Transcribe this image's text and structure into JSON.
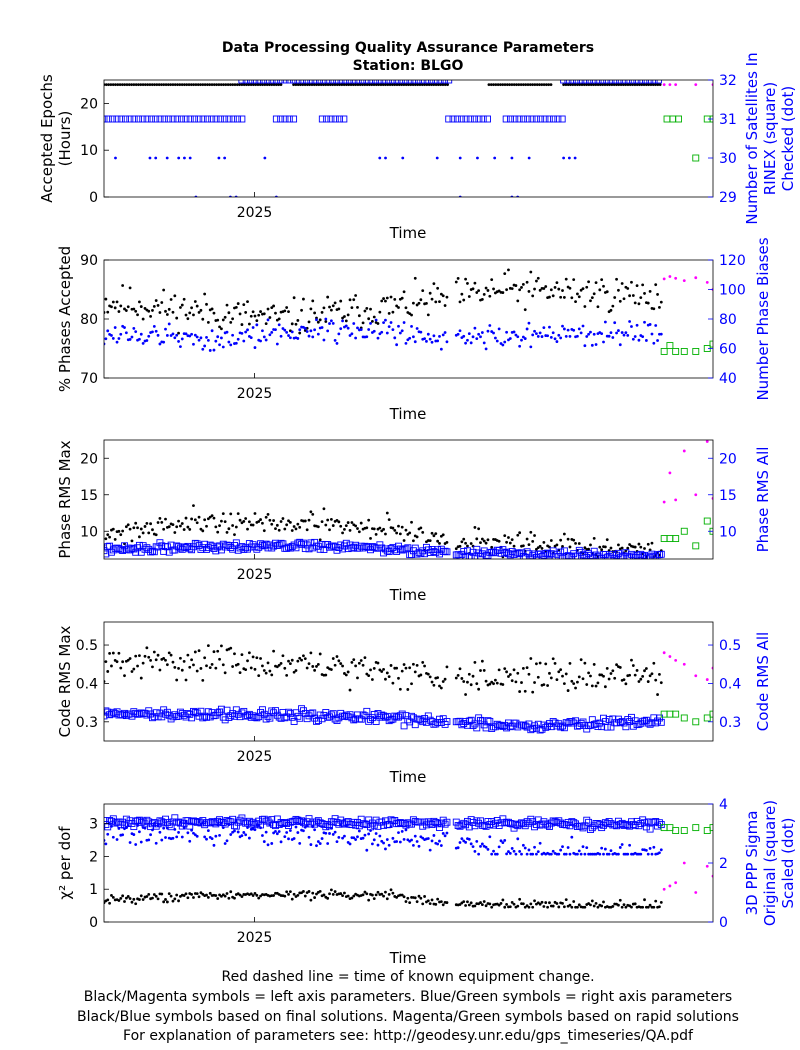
{
  "chart_data": [
    {
      "type": "scatter",
      "title": "Data Processing Quality Assurance Parameters",
      "subtitle": "Station: BLGO",
      "xlabel": "Time",
      "x_ticks": [
        "2025"
      ],
      "ylabel_left": "Accepted Epochs (Hours)",
      "ylabel_right": "Number of Satellites In RINEX (square) Checked (dot)",
      "ylim_left": [
        0,
        25
      ],
      "yticks_left": [
        0,
        10,
        20
      ],
      "ylim_right": [
        29,
        32
      ],
      "yticks_right": [
        29,
        30,
        31,
        32
      ],
      "grid": false,
      "series": [
        {
          "color": "#000000",
          "axis": "left",
          "marker": "dot",
          "source": "final",
          "mode": "line-segments",
          "segments": [
            [
              0.0,
              0.31,
              24
            ],
            [
              0.33,
              0.6,
              24
            ],
            [
              0.67,
              0.78,
              24
            ],
            [
              0.8,
              0.97,
              24
            ]
          ]
        },
        {
          "color": "#0000ff",
          "axis": "right",
          "marker": "square",
          "source": "final",
          "mode": "line-segments",
          "segments": [
            [
              0.0,
              0.24,
              31
            ],
            [
              0.3,
              0.33,
              31
            ],
            [
              0.38,
              0.42,
              31
            ],
            [
              0.6,
              0.67,
              31
            ],
            [
              0.7,
              0.8,
              31
            ]
          ]
        },
        {
          "color": "#0000ff",
          "axis": "right",
          "marker": "square",
          "source": "final",
          "mode": "line-segments",
          "segments": [
            [
              0.24,
              0.6,
              32
            ],
            [
              0.8,
              0.97,
              32
            ]
          ]
        },
        {
          "color": "#0000ff",
          "axis": "right",
          "marker": "dot",
          "source": "final",
          "mode": "points",
          "t": [
            0.02,
            0.08,
            0.09,
            0.11,
            0.13,
            0.14,
            0.15,
            0.2,
            0.21,
            0.28,
            0.48,
            0.49,
            0.52,
            0.58,
            0.62,
            0.65,
            0.68,
            0.71,
            0.74,
            0.8,
            0.81,
            0.82
          ],
          "values": [
            30,
            30,
            30,
            30,
            30,
            30,
            30,
            30,
            30,
            30,
            30,
            30,
            30,
            30,
            30,
            30,
            30,
            30,
            30,
            30,
            30,
            30
          ]
        },
        {
          "color": "#0000ff",
          "axis": "right",
          "marker": "dot",
          "source": "final",
          "mode": "points",
          "t": [
            0.16,
            0.22,
            0.23,
            0.3,
            0.62,
            0.71,
            0.72
          ],
          "values": [
            29,
            29,
            29,
            29,
            29,
            29,
            29
          ]
        },
        {
          "color": "#ff00ff",
          "axis": "left",
          "marker": "dot",
          "source": "rapid",
          "mode": "points",
          "t": [
            0.975,
            0.985,
            0.995,
            1.03,
            1.06
          ],
          "values": [
            24,
            24,
            24,
            24,
            24
          ]
        },
        {
          "color": "#00b000",
          "axis": "right",
          "marker": "square",
          "source": "rapid",
          "mode": "points",
          "t": [
            0.98,
            0.99,
            1.0,
            1.05,
            1.06
          ],
          "values": [
            31,
            31,
            31,
            31,
            31
          ]
        },
        {
          "color": "#00b000",
          "axis": "right",
          "marker": "square",
          "source": "rapid",
          "mode": "points",
          "t": [
            1.03
          ],
          "values": [
            30
          ]
        }
      ]
    },
    {
      "type": "scatter",
      "xlabel": "Time",
      "x_ticks": [
        "2025"
      ],
      "ylabel_left": "% Phases Accepted",
      "ylabel_right": "Number Phase Biases",
      "ylim_left": [
        70,
        90
      ],
      "yticks_left": [
        70,
        80,
        90
      ],
      "ylim_right": [
        40,
        120
      ],
      "yticks_right": [
        40,
        60,
        80,
        100,
        120
      ],
      "grid": false,
      "series": [
        {
          "color": "#000000",
          "axis": "left",
          "marker": "dot",
          "source": "final",
          "mode": "generated",
          "t_range": [
            0.0,
            0.97
          ],
          "n": 300,
          "base": [
            [
              0,
              83
            ],
            [
              0.3,
              80
            ],
            [
              0.5,
              82
            ],
            [
              0.7,
              85
            ],
            [
              0.97,
              84
            ]
          ],
          "noise": 2.6,
          "seed": 11,
          "gaps": [
            [
              0.6,
              0.61
            ]
          ],
          "clip": [
            70.5,
            89.5
          ]
        },
        {
          "color": "#0000ff",
          "axis": "right",
          "marker": "dot",
          "source": "final",
          "mode": "generated",
          "t_range": [
            0.0,
            0.97
          ],
          "n": 300,
          "base": [
            [
              0,
              70
            ],
            [
              0.2,
              66
            ],
            [
              0.4,
              74
            ],
            [
              0.6,
              68
            ],
            [
              0.97,
              70
            ]
          ],
          "noise": 7,
          "seed": 12,
          "gaps": [
            [
              0.6,
              0.61
            ]
          ],
          "clip": [
            41,
            118
          ]
        },
        {
          "color": "#ff00ff",
          "axis": "left",
          "marker": "dot",
          "source": "rapid",
          "mode": "points",
          "t": [
            0.975,
            0.985,
            0.995,
            1.01,
            1.03,
            1.05,
            1.06
          ],
          "values": [
            86.8,
            87.2,
            86.9,
            86.5,
            87.0,
            86.2,
            85.0
          ]
        },
        {
          "color": "#00b000",
          "axis": "right",
          "marker": "square",
          "source": "rapid",
          "mode": "points",
          "t": [
            0.975,
            0.985,
            0.995,
            1.01,
            1.03,
            1.05,
            1.06
          ],
          "values": [
            58,
            62,
            58,
            58,
            58,
            60,
            63
          ]
        }
      ]
    },
    {
      "type": "scatter",
      "xlabel": "Time",
      "x_ticks": [
        "2025"
      ],
      "ylabel_left": "Phase RMS Max",
      "ylabel_right": "Phase RMS All",
      "ylim_left": [
        6.2,
        22.5
      ],
      "yticks_left": [
        10,
        15,
        20
      ],
      "ylim_right": [
        6.2,
        22.5
      ],
      "yticks_right": [
        10,
        15,
        20
      ],
      "grid": false,
      "series": [
        {
          "color": "#000000",
          "axis": "left",
          "marker": "dot",
          "source": "final",
          "mode": "generated",
          "t_range": [
            0.0,
            0.97
          ],
          "n": 300,
          "base": [
            [
              0,
              9.5
            ],
            [
              0.15,
              11.5
            ],
            [
              0.3,
              11
            ],
            [
              0.5,
              10.5
            ],
            [
              0.6,
              8.7
            ],
            [
              0.97,
              7.2
            ]
          ],
          "noise": 1.4,
          "seed": 21,
          "gaps": [
            [
              0.6,
              0.61
            ]
          ],
          "clip": [
            6.5,
            15
          ]
        },
        {
          "color": "#0000ff",
          "axis": "right",
          "marker": "square",
          "source": "final",
          "mode": "generated",
          "t_range": [
            0.0,
            0.97
          ],
          "n": 300,
          "base": [
            [
              0,
              7.4
            ],
            [
              0.2,
              8.0
            ],
            [
              0.4,
              8.0
            ],
            [
              0.6,
              7.0
            ],
            [
              0.97,
              6.6
            ]
          ],
          "noise": 0.5,
          "seed": 22,
          "gaps": [
            [
              0.6,
              0.61
            ]
          ],
          "clip": [
            6.3,
            9.5
          ]
        },
        {
          "color": "#ff00ff",
          "axis": "left",
          "marker": "dot",
          "source": "rapid",
          "mode": "points",
          "t": [
            0.975,
            0.985,
            0.995,
            1.01,
            1.03,
            1.05,
            1.06
          ],
          "values": [
            14.0,
            18.0,
            14.3,
            21.0,
            15.0,
            22.3,
            14.5
          ]
        },
        {
          "color": "#00b000",
          "axis": "right",
          "marker": "square",
          "source": "rapid",
          "mode": "points",
          "t": [
            0.975,
            0.985,
            0.995,
            1.01,
            1.03,
            1.05,
            1.06
          ],
          "values": [
            9.0,
            9.0,
            9.0,
            10.0,
            8.0,
            11.4,
            10.0
          ]
        }
      ]
    },
    {
      "type": "scatter",
      "xlabel": "Time",
      "x_ticks": [
        "2025"
      ],
      "ylabel_left": "Code RMS Max",
      "ylabel_right": "Code RMS All",
      "ylim_left": [
        0.25,
        0.56
      ],
      "yticks_left": [
        0.3,
        0.4,
        0.5
      ],
      "ylim_right": [
        0.25,
        0.56
      ],
      "yticks_right": [
        0.3,
        0.4,
        0.5
      ],
      "grid": false,
      "series": [
        {
          "color": "#000000",
          "axis": "left",
          "marker": "dot",
          "source": "final",
          "mode": "generated",
          "t_range": [
            0.0,
            0.97
          ],
          "n": 300,
          "base": [
            [
              0,
              0.45
            ],
            [
              0.2,
              0.46
            ],
            [
              0.4,
              0.44
            ],
            [
              0.6,
              0.42
            ],
            [
              0.97,
              0.42
            ]
          ],
          "noise": 0.035,
          "seed": 31,
          "gaps": [
            [
              0.6,
              0.61
            ]
          ],
          "clip": [
            0.36,
            0.56
          ]
        },
        {
          "color": "#0000ff",
          "axis": "right",
          "marker": "square",
          "source": "final",
          "mode": "generated",
          "t_range": [
            0.0,
            0.97
          ],
          "n": 300,
          "base": [
            [
              0,
              0.32
            ],
            [
              0.2,
              0.32
            ],
            [
              0.5,
              0.31
            ],
            [
              0.7,
              0.29
            ],
            [
              0.97,
              0.3
            ]
          ],
          "noise": 0.012,
          "seed": 32,
          "gaps": [
            [
              0.6,
              0.61
            ]
          ],
          "clip": [
            0.26,
            0.35
          ]
        },
        {
          "color": "#ff00ff",
          "axis": "left",
          "marker": "dot",
          "source": "rapid",
          "mode": "points",
          "t": [
            0.975,
            0.985,
            0.995,
            1.01,
            1.03,
            1.05,
            1.06
          ],
          "values": [
            0.48,
            0.47,
            0.46,
            0.45,
            0.42,
            0.41,
            0.44
          ]
        },
        {
          "color": "#00b000",
          "axis": "right",
          "marker": "square",
          "source": "rapid",
          "mode": "points",
          "t": [
            0.975,
            0.985,
            0.995,
            1.01,
            1.03,
            1.05,
            1.06
          ],
          "values": [
            0.32,
            0.32,
            0.32,
            0.31,
            0.3,
            0.31,
            0.32
          ]
        }
      ]
    },
    {
      "type": "scatter",
      "xlabel": "Time",
      "x_ticks": [
        "2025"
      ],
      "ylabel_left": "χ² per dof",
      "ylabel_right": "3D PPP Sigma Original (square) Scaled (dot)",
      "ylim_left": [
        0,
        3.6
      ],
      "yticks_left": [
        0,
        1,
        2,
        3
      ],
      "ylim_right": [
        0,
        4
      ],
      "yticks_right": [
        0,
        2,
        4
      ],
      "grid": false,
      "series": [
        {
          "color": "#0000ff",
          "axis": "right",
          "marker": "square",
          "source": "final",
          "mode": "generated",
          "t_range": [
            0.0,
            0.97
          ],
          "n": 300,
          "base": [
            [
              0,
              3.35
            ],
            [
              0.2,
              3.4
            ],
            [
              0.5,
              3.35
            ],
            [
              0.97,
              3.3
            ]
          ],
          "noise": 0.12,
          "seed": 41,
          "gaps": [
            [
              0.6,
              0.61
            ]
          ],
          "clip": [
            3.0,
            3.95
          ]
        },
        {
          "color": "#0000ff",
          "axis": "right",
          "marker": "dot",
          "source": "final",
          "mode": "generated",
          "t_range": [
            0.0,
            0.97
          ],
          "n": 300,
          "base": [
            [
              0,
              3.0
            ],
            [
              0.3,
              3.0
            ],
            [
              0.6,
              2.7
            ],
            [
              0.75,
              2.3
            ],
            [
              0.97,
              2.3
            ]
          ],
          "noise": 0.35,
          "seed": 42,
          "gaps": [
            [
              0.6,
              0.61
            ]
          ],
          "clip": [
            2.3,
            4.0
          ]
        },
        {
          "color": "#000000",
          "axis": "left",
          "marker": "dot",
          "source": "final",
          "mode": "generated",
          "t_range": [
            0.0,
            0.97
          ],
          "n": 300,
          "base": [
            [
              0,
              0.7
            ],
            [
              0.3,
              0.85
            ],
            [
              0.5,
              0.8
            ],
            [
              0.6,
              0.55
            ],
            [
              0.97,
              0.5
            ]
          ],
          "noise": 0.12,
          "seed": 43,
          "gaps": [
            [
              0.6,
              0.61
            ]
          ],
          "clip": [
            0.45,
            1.4
          ]
        },
        {
          "color": "#ff00ff",
          "axis": "left",
          "marker": "dot",
          "source": "rapid",
          "mode": "points",
          "t": [
            0.975,
            0.985,
            0.995,
            1.01,
            1.03,
            1.05,
            1.06
          ],
          "values": [
            1.0,
            1.1,
            1.2,
            1.8,
            0.9,
            1.7,
            1.4
          ]
        },
        {
          "color": "#00b000",
          "axis": "right",
          "marker": "square",
          "source": "rapid",
          "mode": "points",
          "t": [
            0.975,
            0.985,
            0.995,
            1.01,
            1.03,
            1.05,
            1.06
          ],
          "values": [
            3.2,
            3.2,
            3.1,
            3.1,
            3.2,
            3.1,
            3.2
          ]
        }
      ]
    }
  ],
  "footer": {
    "line1": "Red dashed line = time of known equipment change.",
    "line2": "Black/Magenta symbols = left axis parameters. Blue/Green symbols = right axis parameters",
    "line3": "Black/Blue symbols based on final solutions.  Magenta/Green symbols based on rapid solutions",
    "line4": "For explanation of parameters see: http://geodesy.unr.edu/gps_timeseries/QA.pdf"
  }
}
